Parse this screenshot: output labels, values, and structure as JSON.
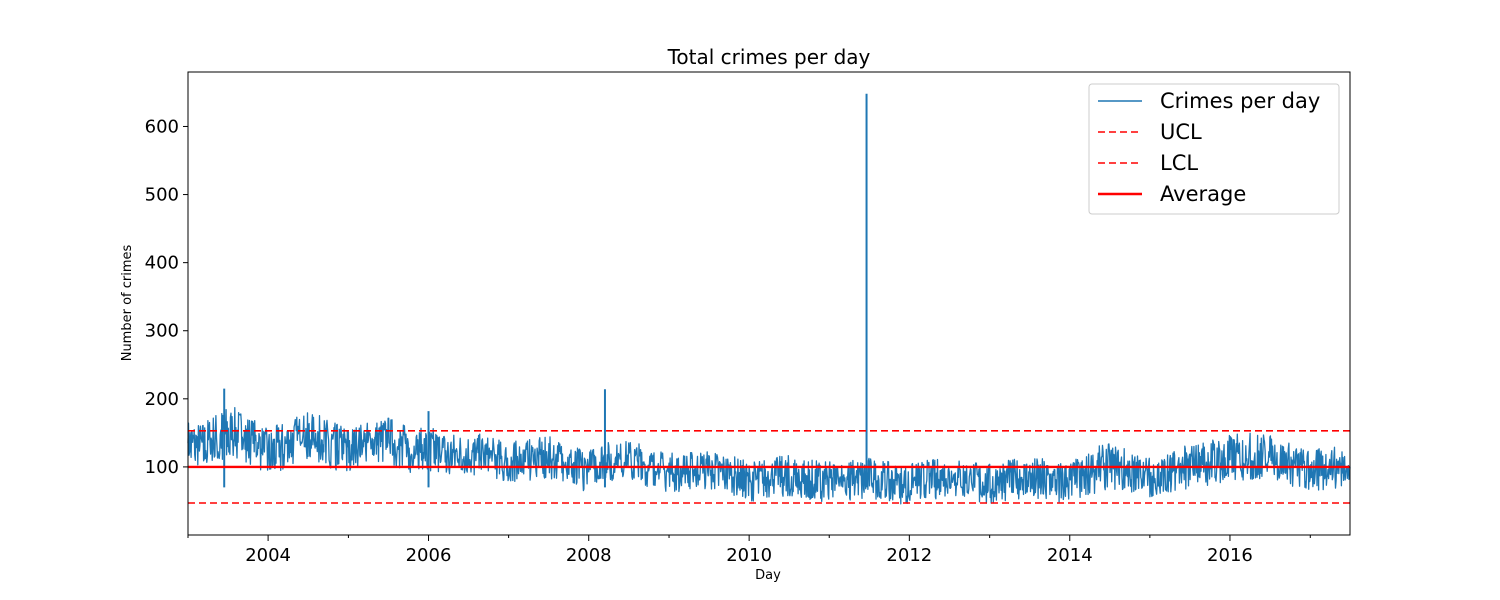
{
  "chart_data": {
    "type": "line",
    "title": "Total crimes per day",
    "xlabel": "Day",
    "ylabel": "Number of crimes",
    "xlim": [
      "2003-01-01",
      "2017-07-01"
    ],
    "ylim": [
      0,
      680
    ],
    "x_ticks": [
      "2004",
      "2006",
      "2008",
      "2010",
      "2012",
      "2014",
      "2016"
    ],
    "y_ticks": [
      100,
      200,
      300,
      400,
      500,
      600
    ],
    "grid": false,
    "legend_position": "top-right",
    "colors": {
      "series": "#1f77b4",
      "control": "#ff0000"
    },
    "series": [
      {
        "name": "Crimes per day",
        "style": "solid",
        "x": [
          "2003-01-01",
          "2003-03-01",
          "2003-05-01",
          "2003-07-01",
          "2003-09-01",
          "2003-11-01",
          "2004-01-01",
          "2004-03-01",
          "2004-05-01",
          "2004-07-01",
          "2004-09-01",
          "2004-11-01",
          "2005-01-01",
          "2005-03-01",
          "2005-05-01",
          "2005-07-01",
          "2005-09-01",
          "2005-11-01",
          "2006-01-01",
          "2006-03-01",
          "2006-05-01",
          "2006-07-01",
          "2006-09-01",
          "2006-11-01",
          "2007-01-01",
          "2007-03-01",
          "2007-05-01",
          "2007-07-01",
          "2007-09-01",
          "2007-11-01",
          "2008-01-01",
          "2008-03-01",
          "2008-05-01",
          "2008-07-01",
          "2008-09-01",
          "2008-11-01",
          "2009-01-01",
          "2009-03-01",
          "2009-05-01",
          "2009-07-01",
          "2009-09-01",
          "2009-11-01",
          "2010-01-01",
          "2010-03-01",
          "2010-05-01",
          "2010-07-01",
          "2010-09-01",
          "2010-11-01",
          "2011-01-01",
          "2011-03-01",
          "2011-05-01",
          "2011-07-01",
          "2011-09-01",
          "2011-11-01",
          "2012-01-01",
          "2012-03-01",
          "2012-05-01",
          "2012-07-01",
          "2012-09-01",
          "2012-11-01",
          "2013-01-01",
          "2013-03-01",
          "2013-05-01",
          "2013-07-01",
          "2013-09-01",
          "2013-11-01",
          "2014-01-01",
          "2014-03-01",
          "2014-05-01",
          "2014-07-01",
          "2014-09-01",
          "2014-11-01",
          "2015-01-01",
          "2015-03-01",
          "2015-05-01",
          "2015-07-01",
          "2015-09-01",
          "2015-11-01",
          "2016-01-01",
          "2016-03-01",
          "2016-05-01",
          "2016-07-01",
          "2016-09-01",
          "2016-11-01",
          "2017-01-01",
          "2017-03-01",
          "2017-05-01",
          "2017-07-01"
        ],
        "y": [
          135,
          130,
          140,
          150,
          145,
          135,
          120,
          130,
          140,
          145,
          140,
          130,
          125,
          130,
          135,
          140,
          130,
          120,
          125,
          120,
          118,
          118,
          115,
          110,
          105,
          108,
          110,
          112,
          108,
          100,
          95,
          110,
          105,
          110,
          105,
          95,
          92,
          90,
          95,
          95,
          92,
          85,
          78,
          82,
          85,
          88,
          85,
          80,
          78,
          80,
          82,
          85,
          80,
          75,
          75,
          80,
          82,
          85,
          82,
          78,
          75,
          80,
          82,
          85,
          83,
          78,
          80,
          85,
          95,
          100,
          95,
          90,
          85,
          90,
          92,
          100,
          105,
          108,
          110,
          112,
          115,
          112,
          105,
          100,
          95,
          98,
          100,
          100
        ],
        "min_values": [
          105,
          100,
          105,
          110,
          110,
          100,
          90,
          95,
          100,
          110,
          105,
          95,
          90,
          95,
          100,
          105,
          95,
          90,
          95,
          90,
          90,
          90,
          85,
          80,
          75,
          78,
          80,
          82,
          78,
          70,
          60,
          80,
          75,
          80,
          75,
          65,
          62,
          60,
          65,
          65,
          62,
          55,
          48,
          52,
          55,
          58,
          55,
          50,
          48,
          50,
          52,
          55,
          50,
          45,
          45,
          50,
          52,
          55,
          52,
          48,
          45,
          50,
          52,
          55,
          53,
          48,
          50,
          55,
          62,
          65,
          62,
          60,
          55,
          60,
          62,
          68,
          72,
          75,
          78,
          80,
          82,
          80,
          72,
          68,
          62,
          65,
          68,
          70
        ],
        "max_values": [
          170,
          165,
          180,
          190,
          185,
          170,
          155,
          165,
          175,
          180,
          175,
          165,
          160,
          165,
          170,
          175,
          165,
          155,
          160,
          155,
          150,
          150,
          148,
          142,
          138,
          140,
          142,
          145,
          140,
          130,
          125,
          140,
          135,
          140,
          135,
          125,
          122,
          120,
          125,
          125,
          122,
          115,
          108,
          112,
          115,
          118,
          115,
          110,
          108,
          110,
          112,
          115,
          110,
          105,
          105,
          110,
          112,
          115,
          112,
          108,
          105,
          110,
          112,
          115,
          113,
          108,
          110,
          115,
          130,
          135,
          130,
          120,
          115,
          120,
          125,
          135,
          140,
          145,
          148,
          150,
          152,
          148,
          140,
          132,
          125,
          128,
          130,
          130
        ],
        "spikes": [
          {
            "x": "2003-06-15",
            "y": 215
          },
          {
            "x": "2006-01-01",
            "y": 182
          },
          {
            "x": "2008-03-15",
            "y": 214
          },
          {
            "x": "2011-06-20",
            "y": 648
          }
        ]
      },
      {
        "name": "UCL",
        "style": "dashed",
        "y": 153
      },
      {
        "name": "LCL",
        "style": "dashed",
        "y": 47
      },
      {
        "name": "Average",
        "style": "solid",
        "y": 100
      }
    ]
  }
}
